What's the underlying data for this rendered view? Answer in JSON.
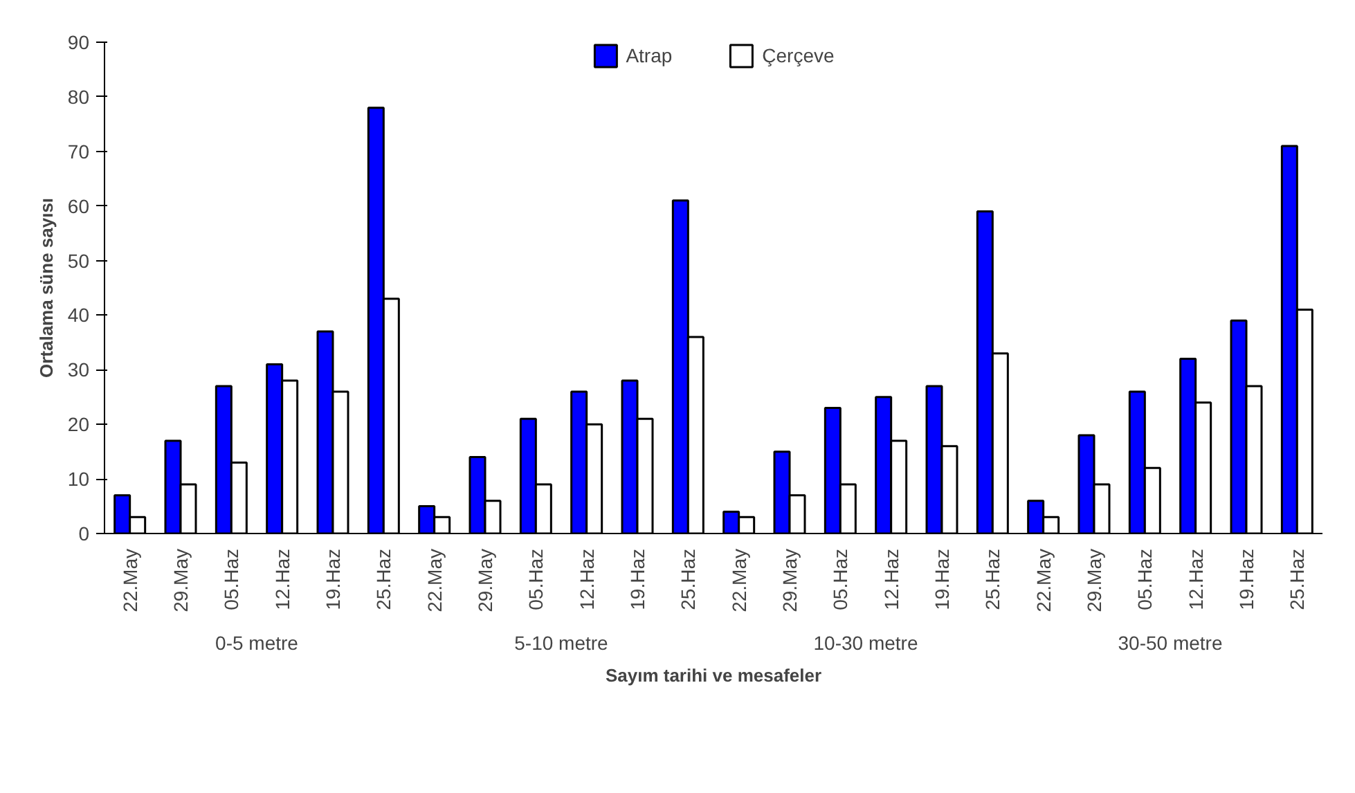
{
  "chart_data": {
    "type": "bar",
    "xlabel": "Sayım tarihi ve mesafeler",
    "ylabel": "Ortalama süne sayısı",
    "categories": [
      "22.May",
      "29.May",
      "05.Haz",
      "12.Haz",
      "19.Haz",
      "25.Haz",
      "22.May",
      "29.May",
      "05.Haz",
      "12.Haz",
      "19.Haz",
      "25.Haz",
      "22.May",
      "29.May",
      "05.Haz",
      "12.Haz",
      "19.Haz",
      "25.Haz",
      "22.May",
      "29.May",
      "05.Haz",
      "12.Haz",
      "19.Haz",
      "25.Haz"
    ],
    "series": [
      {
        "name": "Atrap",
        "color": "#0000ff",
        "values": [
          7,
          17,
          27,
          31,
          37,
          78,
          5,
          14,
          21,
          26,
          28,
          61,
          4,
          15,
          23,
          25,
          27,
          59,
          6,
          18,
          26,
          32,
          39,
          71
        ]
      },
      {
        "name": "Çerçeve",
        "color": "#ffffff",
        "values": [
          3,
          9,
          13,
          28,
          26,
          43,
          3,
          6,
          9,
          20,
          21,
          36,
          3,
          7,
          9,
          17,
          16,
          33,
          3,
          9,
          12,
          24,
          27,
          41
        ]
      }
    ],
    "annotations": [
      "0-5 metre",
      "5-10 metre",
      "10-30 metre",
      "30-50 metre"
    ],
    "ylim": [
      0,
      90
    ],
    "yticks": [
      0,
      10,
      20,
      30,
      40,
      50,
      60,
      70,
      80,
      90
    ],
    "grid": false,
    "legend": "top"
  }
}
